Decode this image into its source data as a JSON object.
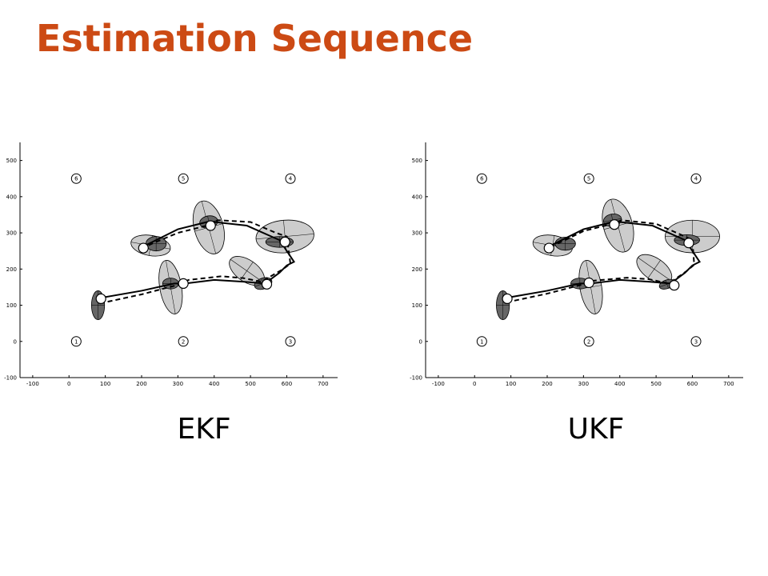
{
  "title": "Estimation Sequence",
  "chart_data": [
    {
      "type": "line",
      "title": "EKF",
      "xlim": [
        -135,
        740
      ],
      "ylim": [
        -100,
        550
      ],
      "xticks": [
        -100,
        0,
        100,
        200,
        300,
        400,
        500,
        600,
        700
      ],
      "yticks": [
        -100,
        0,
        100,
        200,
        300,
        400,
        500
      ],
      "landmarks": {
        "x": [
          20,
          315,
          610,
          610,
          315,
          20
        ],
        "y": [
          0,
          0,
          0,
          450,
          450,
          450
        ],
        "labels": [
          "1",
          "2",
          "3",
          "4",
          "5",
          "6"
        ]
      },
      "series": [
        {
          "color": "#000000",
          "dash": false,
          "x": [
            85,
            200,
            290,
            320,
            400,
            480,
            540,
            580,
            600,
            620,
            580,
            490,
            400,
            380,
            300,
            240,
            200
          ],
          "values": [
            120,
            140,
            160,
            160,
            170,
            165,
            160,
            190,
            210,
            220,
            280,
            320,
            330,
            330,
            310,
            280,
            260
          ]
        },
        {
          "color": "#000000",
          "dash": true,
          "x": [
            85,
            200,
            295,
            330,
            420,
            480,
            530,
            590,
            610,
            600,
            570,
            500,
            410,
            380,
            300,
            240,
            195
          ],
          "values": [
            105,
            130,
            155,
            170,
            180,
            175,
            165,
            200,
            215,
            290,
            300,
            330,
            335,
            320,
            300,
            275,
            255
          ]
        }
      ],
      "ellipses": {
        "color": "#cccccc",
        "cx": [
          280,
          490,
          595,
          385,
          225
        ],
        "cy": [
          150,
          195,
          290,
          315,
          265
        ],
        "rx": [
          30,
          55,
          80,
          40,
          55
        ],
        "ry": [
          75,
          30,
          45,
          75,
          28
        ],
        "angle": [
          10,
          -35,
          5,
          15,
          -10
        ]
      },
      "dark_ellipses": {
        "color": "#666666",
        "cx": [
          80,
          280,
          535,
          580,
          385,
          240
        ],
        "cy": [
          100,
          160,
          160,
          275,
          330,
          270
        ],
        "rx": [
          18,
          22,
          25,
          38,
          25,
          28
        ],
        "ry": [
          40,
          15,
          15,
          15,
          17,
          20
        ],
        "angle": [
          0,
          0,
          20,
          0,
          10,
          0
        ]
      },
      "poses": {
        "x": [
          88,
          315,
          545,
          595,
          390,
          205
        ],
        "y": [
          118,
          160,
          158,
          275,
          320,
          258
        ]
      }
    },
    {
      "type": "line",
      "title": "UKF",
      "xlim": [
        -135,
        740
      ],
      "ylim": [
        -100,
        550
      ],
      "xticks": [
        -100,
        0,
        100,
        200,
        300,
        400,
        500,
        600,
        700
      ],
      "yticks": [
        -100,
        0,
        100,
        200,
        300,
        400,
        500
      ],
      "landmarks": {
        "x": [
          20,
          315,
          610,
          610,
          315,
          20
        ],
        "y": [
          0,
          0,
          0,
          450,
          450,
          450
        ],
        "labels": [
          "1",
          "2",
          "3",
          "4",
          "5",
          "6"
        ]
      },
      "series": [
        {
          "color": "#000000",
          "dash": false,
          "x": [
            85,
            200,
            290,
            320,
            400,
            480,
            540,
            580,
            600,
            620,
            580,
            490,
            400,
            380,
            300,
            240,
            200
          ],
          "values": [
            120,
            140,
            160,
            160,
            170,
            165,
            160,
            190,
            210,
            220,
            280,
            320,
            330,
            330,
            310,
            280,
            260
          ]
        },
        {
          "color": "#000000",
          "dash": true,
          "x": [
            88,
            200,
            300,
            330,
            420,
            480,
            535,
            585,
            605,
            600,
            575,
            500,
            405,
            380,
            300,
            245,
            200
          ],
          "values": [
            108,
            132,
            158,
            168,
            176,
            172,
            160,
            195,
            212,
            280,
            292,
            325,
            335,
            325,
            305,
            278,
            258
          ]
        }
      ],
      "ellipses": {
        "color": "#cccccc",
        "cx": [
          320,
          495,
          600,
          395,
          215
        ],
        "cy": [
          150,
          200,
          290,
          320,
          265
        ],
        "rx": [
          30,
          55,
          75,
          40,
          55
        ],
        "ry": [
          75,
          30,
          45,
          75,
          28
        ],
        "angle": [
          10,
          -35,
          0,
          15,
          -10
        ]
      },
      "dark_ellipses": {
        "color": "#666666",
        "cx": [
          78,
          290,
          530,
          585,
          380,
          250
        ],
        "cy": [
          100,
          160,
          158,
          280,
          335,
          270
        ],
        "rx": [
          18,
          25,
          22,
          35,
          25,
          28
        ],
        "ry": [
          40,
          15,
          12,
          15,
          17,
          18
        ],
        "angle": [
          0,
          0,
          20,
          0,
          10,
          0
        ]
      },
      "poses": {
        "x": [
          90,
          315,
          550,
          590,
          385,
          205
        ],
        "y": [
          118,
          162,
          155,
          272,
          323,
          258
        ]
      }
    }
  ]
}
